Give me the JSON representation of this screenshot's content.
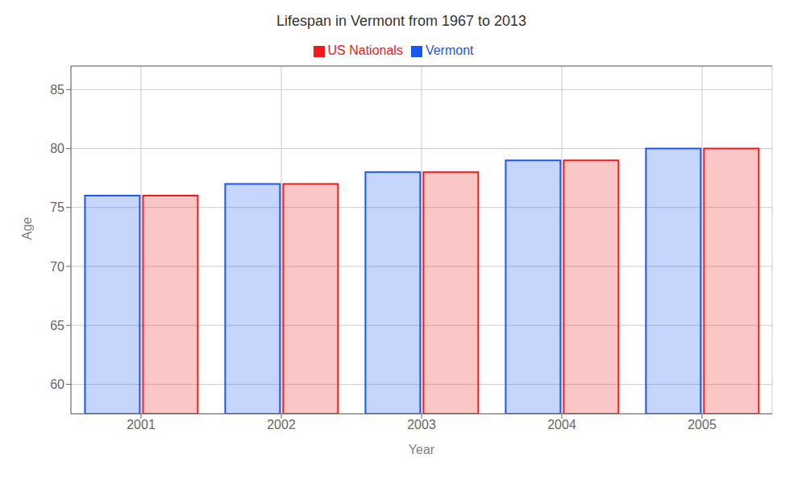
{
  "chart_data": {
    "type": "bar",
    "title": "Lifespan in Vermont from 1967 to 2013",
    "xlabel": "Year",
    "ylabel": "Age",
    "categories": [
      "2001",
      "2002",
      "2003",
      "2004",
      "2005"
    ],
    "series": [
      {
        "name": "Vermont",
        "color": "#1a56f0",
        "values": [
          76,
          77,
          78,
          79,
          80
        ]
      },
      {
        "name": "US Nationals",
        "color": "#f01a1a",
        "values": [
          76,
          77,
          78,
          79,
          80
        ]
      }
    ],
    "ylim": [
      57.5,
      87
    ],
    "yticks": [
      60,
      65,
      70,
      75,
      80,
      85
    ],
    "grid": true,
    "legend": "top"
  }
}
